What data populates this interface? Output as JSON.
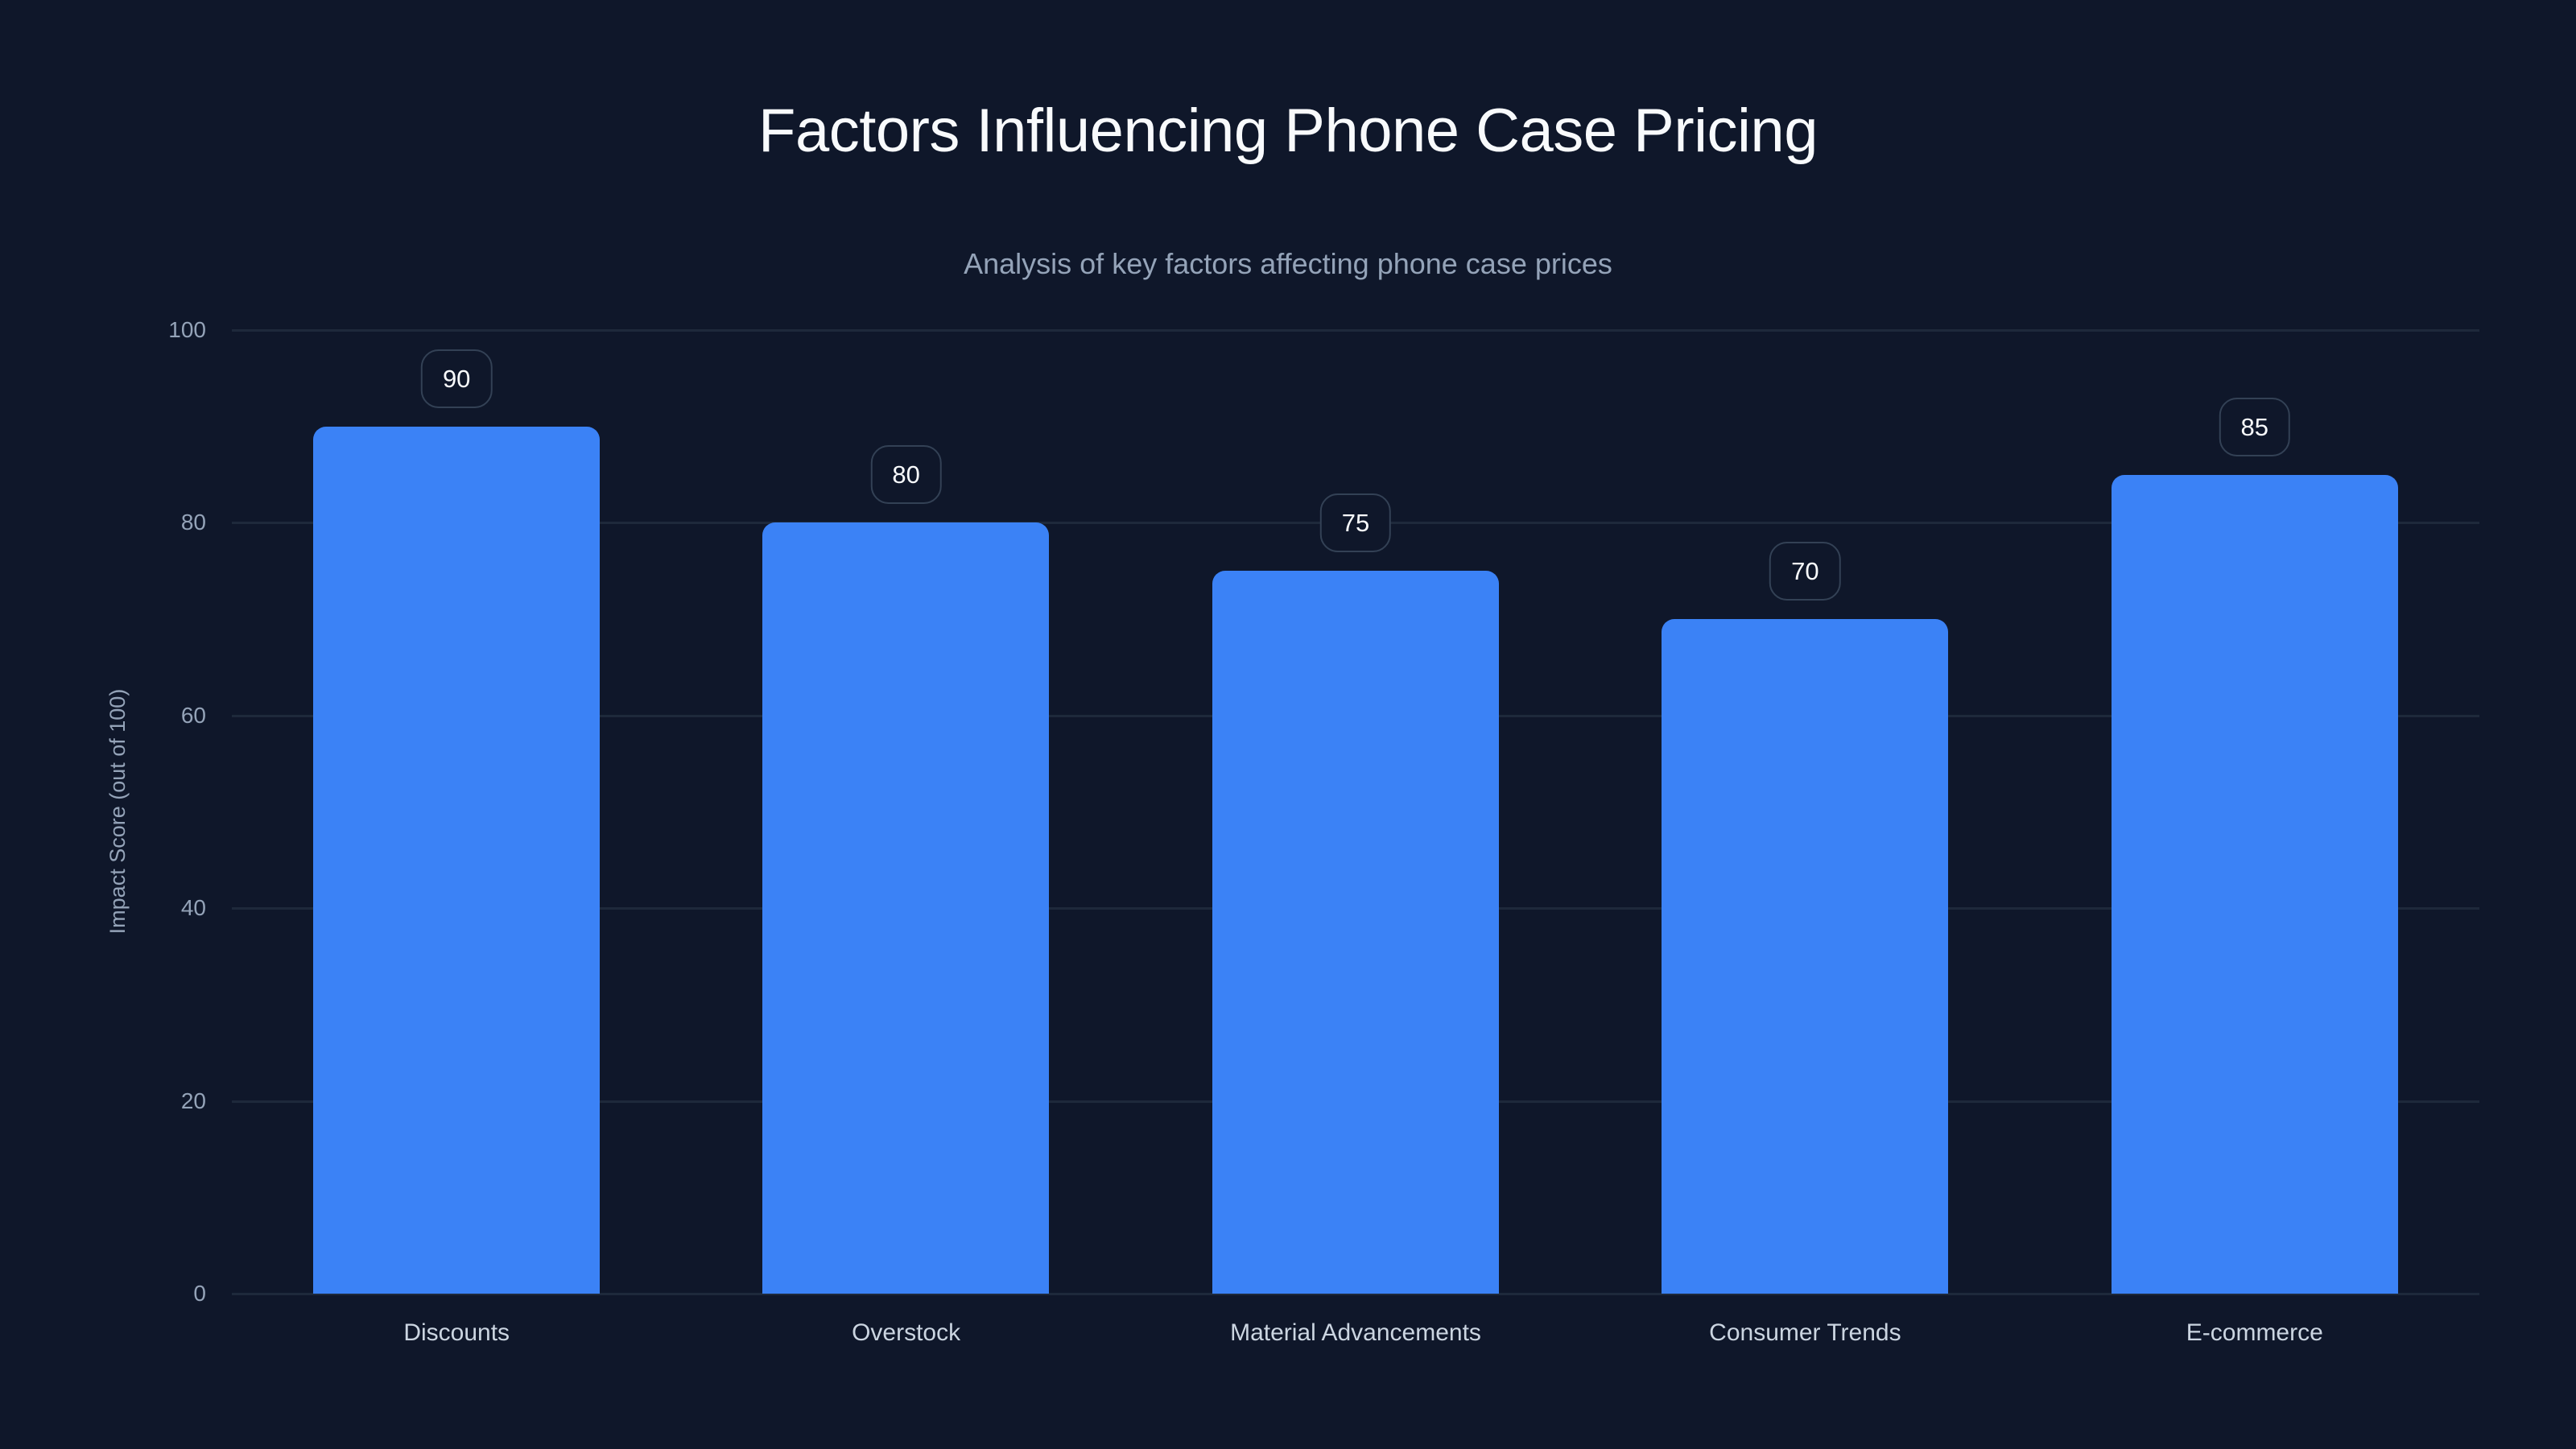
{
  "header": {
    "title": "Factors Influencing Phone Case Pricing",
    "subtitle": "Analysis of key factors affecting phone case prices"
  },
  "axes": {
    "y_label": "Impact Score (out of 100)",
    "y_ticks": [
      "0",
      "20",
      "40",
      "60",
      "80",
      "100"
    ]
  },
  "colors": {
    "background": "#0f172a",
    "bar": "#3b82f6",
    "grid": "#1e293b",
    "badge_border": "#334155",
    "title": "#f8fafc",
    "muted": "#94a3b8"
  },
  "bars": [
    {
      "label": "Discounts",
      "value": 90,
      "value_label": "90"
    },
    {
      "label": "Overstock",
      "value": 80,
      "value_label": "80"
    },
    {
      "label": "Material Advancements",
      "value": 75,
      "value_label": "75"
    },
    {
      "label": "Consumer Trends",
      "value": 70,
      "value_label": "70"
    },
    {
      "label": "E-commerce",
      "value": 85,
      "value_label": "85"
    }
  ],
  "chart_data": {
    "type": "bar",
    "title": "Factors Influencing Phone Case Pricing",
    "subtitle": "Analysis of key factors affecting phone case prices",
    "categories": [
      "Discounts",
      "Overstock",
      "Material Advancements",
      "Consumer Trends",
      "E-commerce"
    ],
    "values": [
      90,
      80,
      75,
      70,
      85
    ],
    "xlabel": "",
    "ylabel": "Impact Score (out of 100)",
    "ylim": [
      0,
      100
    ],
    "yticks": [
      0,
      20,
      40,
      60,
      80,
      100
    ],
    "grid": "horizontal",
    "data_labels": true,
    "legend": "none"
  }
}
